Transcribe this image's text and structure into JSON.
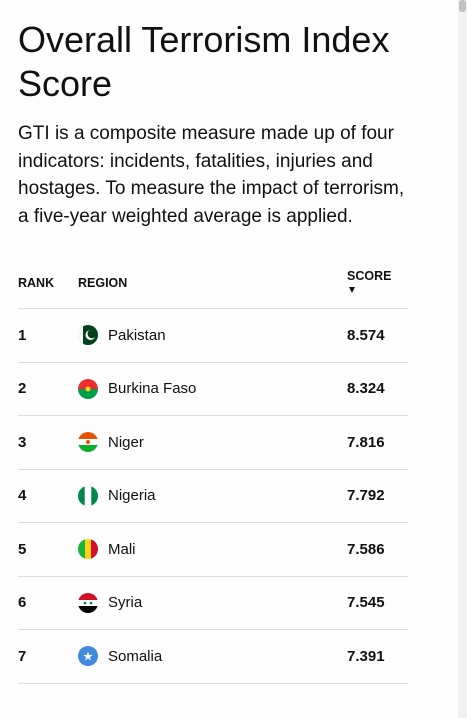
{
  "header": {
    "title": "Overall Terrorism Index Score",
    "description": "GTI is a composite measure made up of four indicators: incidents, fatalities, injuries and hostages. To measure the impact of terrorism, a five-year weighted average is applied."
  },
  "table": {
    "columns": [
      "RANK",
      "REGION",
      "SCORE"
    ],
    "rows": [
      [
        1,
        "Pakistan",
        8.574
      ],
      [
        2,
        "Burkina Faso",
        8.324
      ],
      [
        3,
        "Niger",
        7.816
      ],
      [
        4,
        "Nigeria",
        7.792
      ],
      [
        5,
        "Mali",
        7.586
      ],
      [
        6,
        "Syria",
        7.545
      ],
      [
        7,
        "Somalia",
        7.391
      ]
    ]
  }
}
